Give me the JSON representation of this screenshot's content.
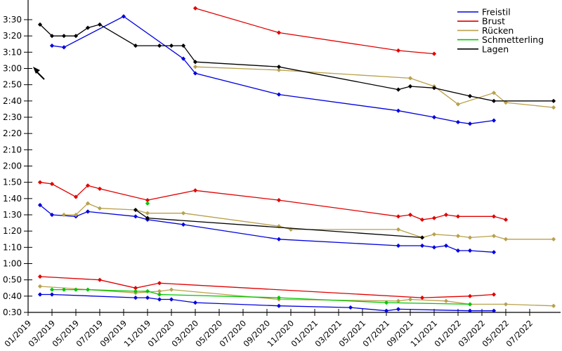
{
  "chart_data": {
    "type": "line",
    "title": "",
    "xlabel": "",
    "ylabel": "",
    "grid": false,
    "x_axis": {
      "first_month": "01/2019",
      "last_month": "09/2022",
      "tick_labels": [
        "01/2019",
        "03/2019",
        "05/2019",
        "07/2019",
        "09/2019",
        "11/2019",
        "01/2020",
        "03/2020",
        "05/2020",
        "07/2020",
        "09/2020",
        "11/2020",
        "01/2021",
        "03/2021",
        "05/2021",
        "07/2021",
        "09/2021",
        "11/2021",
        "01/2022",
        "03/2022",
        "05/2022",
        "07/2022"
      ]
    },
    "y_axis": {
      "format": "m:ss",
      "min": "0:30",
      "max": "3:30",
      "tick_labels": [
        "0:30",
        "0:40",
        "0:50",
        "1:00",
        "1:10",
        "1:20",
        "1:30",
        "1:40",
        "1:50",
        "2:00",
        "2:10",
        "2:20",
        "2:30",
        "2:40",
        "2:50",
        "3:00",
        "3:10",
        "3:20",
        "3:30"
      ]
    },
    "legend": {
      "position": "upper-right",
      "entries": [
        {
          "label": "Freistil",
          "color": "#0000e0"
        },
        {
          "label": "Brust",
          "color": "#e00000"
        },
        {
          "label": "Rücken",
          "color": "#b8a14c"
        },
        {
          "label": "Schmetterling",
          "color": "#00c800"
        },
        {
          "label": "Lagen",
          "color": "#000000"
        }
      ]
    },
    "series": [
      {
        "label": "Freistil",
        "cluster": "top",
        "color": "#0000e0",
        "points": [
          [
            "03/2019",
            "3:14"
          ],
          [
            "04/2019",
            "3:13"
          ],
          [
            "09/2019",
            "3:32"
          ],
          [
            "02/2020",
            "3:06"
          ],
          [
            "03/2020",
            "2:57"
          ],
          [
            "10/2020",
            "2:44"
          ],
          [
            "08/2021",
            "2:34"
          ],
          [
            "11/2021",
            "2:30"
          ],
          [
            "01/2022",
            "2:27"
          ],
          [
            "02/2022",
            "2:26"
          ],
          [
            "04/2022",
            "2:28"
          ]
        ]
      },
      {
        "label": "Freistil",
        "cluster": "middle",
        "color": "#0000e0",
        "points": [
          [
            "02/2019",
            "1:36"
          ],
          [
            "03/2019",
            "1:30"
          ],
          [
            "05/2019",
            "1:29"
          ],
          [
            "06/2019",
            "1:32"
          ],
          [
            "10/2019",
            "1:29"
          ],
          [
            "11/2019",
            "1:27"
          ],
          [
            "02/2020",
            "1:24"
          ],
          [
            "10/2020",
            "1:15"
          ],
          [
            "08/2021",
            "1:11"
          ],
          [
            "10/2021",
            "1:11"
          ],
          [
            "11/2021",
            "1:10"
          ],
          [
            "12/2021",
            "1:11"
          ],
          [
            "01/2022",
            "1:08"
          ],
          [
            "02/2022",
            "1:08"
          ],
          [
            "04/2022",
            "1:07"
          ]
        ]
      },
      {
        "label": "Freistil",
        "cluster": "bottom",
        "color": "#0000e0",
        "points": [
          [
            "02/2019",
            "0:41"
          ],
          [
            "03/2019",
            "0:41"
          ],
          [
            "10/2019",
            "0:39"
          ],
          [
            "11/2019",
            "0:39"
          ],
          [
            "12/2019",
            "0:38"
          ],
          [
            "01/2020",
            "0:38"
          ],
          [
            "03/2020",
            "0:36"
          ],
          [
            "10/2020",
            "0:34"
          ],
          [
            "04/2021",
            "0:33"
          ],
          [
            "07/2021",
            "0:31"
          ],
          [
            "08/2021",
            "0:32"
          ],
          [
            "02/2022",
            "0:31"
          ],
          [
            "04/2022",
            "0:31"
          ]
        ]
      },
      {
        "label": "Brust",
        "cluster": "top",
        "color": "#e00000",
        "points": [
          [
            "03/2020",
            "3:37"
          ],
          [
            "10/2020",
            "3:22"
          ],
          [
            "08/2021",
            "3:11"
          ],
          [
            "11/2021",
            "3:09"
          ]
        ]
      },
      {
        "label": "Brust",
        "cluster": "middle",
        "color": "#e00000",
        "points": [
          [
            "02/2019",
            "1:50"
          ],
          [
            "03/2019",
            "1:49"
          ],
          [
            "05/2019",
            "1:41"
          ],
          [
            "06/2019",
            "1:48"
          ],
          [
            "07/2019",
            "1:46"
          ],
          [
            "11/2019",
            "1:39"
          ],
          [
            "03/2020",
            "1:45"
          ],
          [
            "10/2020",
            "1:39"
          ],
          [
            "08/2021",
            "1:29"
          ],
          [
            "09/2021",
            "1:30"
          ],
          [
            "10/2021",
            "1:27"
          ],
          [
            "11/2021",
            "1:28"
          ],
          [
            "12/2021",
            "1:30"
          ],
          [
            "01/2022",
            "1:29"
          ],
          [
            "04/2022",
            "1:29"
          ],
          [
            "05/2022",
            "1:27"
          ]
        ]
      },
      {
        "label": "Brust",
        "cluster": "bottom",
        "color": "#e00000",
        "points": [
          [
            "02/2019",
            "0:52"
          ],
          [
            "07/2019",
            "0:50"
          ],
          [
            "10/2019",
            "0:45"
          ],
          [
            "12/2019",
            "0:48"
          ],
          [
            "10/2021",
            "0:39"
          ],
          [
            "02/2022",
            "0:40"
          ],
          [
            "04/2022",
            "0:41"
          ]
        ]
      },
      {
        "label": "Rücken",
        "cluster": "top",
        "color": "#b8a14c",
        "points": [
          [
            "03/2020",
            "3:01"
          ],
          [
            "10/2020",
            "2:59"
          ],
          [
            "09/2021",
            "2:54"
          ],
          [
            "11/2021",
            "2:49"
          ],
          [
            "01/2022",
            "2:38"
          ],
          [
            "04/2022",
            "2:45"
          ],
          [
            "05/2022",
            "2:39"
          ],
          [
            "09/2022",
            "2:36"
          ]
        ]
      },
      {
        "label": "Rücken",
        "cluster": "middle",
        "color": "#b8a14c",
        "points": [
          [
            "04/2019",
            "1:30"
          ],
          [
            "05/2019",
            "1:30"
          ],
          [
            "06/2019",
            "1:37"
          ],
          [
            "07/2019",
            "1:34"
          ],
          [
            "10/2019",
            "1:33"
          ],
          [
            "11/2019",
            "1:31"
          ],
          [
            "02/2020",
            "1:31"
          ],
          [
            "10/2020",
            "1:23"
          ],
          [
            "11/2020",
            "1:21"
          ],
          [
            "08/2021",
            "1:21"
          ],
          [
            "10/2021",
            "1:16"
          ],
          [
            "11/2021",
            "1:18"
          ],
          [
            "01/2022",
            "1:17"
          ],
          [
            "02/2022",
            "1:16"
          ],
          [
            "04/2022",
            "1:17"
          ],
          [
            "05/2022",
            "1:15"
          ],
          [
            "09/2022",
            "1:15"
          ]
        ]
      },
      {
        "label": "Rücken",
        "cluster": "bottom",
        "color": "#b8a14c",
        "points": [
          [
            "02/2019",
            "0:46"
          ],
          [
            "10/2019",
            "0:42"
          ],
          [
            "12/2019",
            "0:43"
          ],
          [
            "01/2020",
            "0:44"
          ],
          [
            "10/2020",
            "0:38"
          ],
          [
            "08/2021",
            "0:37"
          ],
          [
            "09/2021",
            "0:38"
          ],
          [
            "12/2021",
            "0:37"
          ],
          [
            "02/2022",
            "0:35"
          ],
          [
            "05/2022",
            "0:35"
          ],
          [
            "09/2022",
            "0:34"
          ]
        ]
      },
      {
        "label": "Schmetterling",
        "cluster": "middle",
        "color": "#00c800",
        "points": [
          [
            "11/2019",
            "1:37"
          ]
        ]
      },
      {
        "label": "Schmetterling",
        "cluster": "bottom",
        "color": "#00c800",
        "points": [
          [
            "03/2019",
            "0:44"
          ],
          [
            "04/2019",
            "0:44"
          ],
          [
            "05/2019",
            "0:44"
          ],
          [
            "06/2019",
            "0:44"
          ],
          [
            "10/2019",
            "0:43"
          ],
          [
            "11/2019",
            "0:43"
          ],
          [
            "12/2019",
            "0:41"
          ],
          [
            "10/2020",
            "0:39"
          ],
          [
            "07/2021",
            "0:36"
          ],
          [
            "02/2022",
            "0:35"
          ]
        ]
      },
      {
        "label": "Lagen",
        "cluster": "middle",
        "color": "#000000",
        "points": [
          [
            "10/2019",
            "1:33"
          ],
          [
            "11/2019",
            "1:28"
          ],
          [
            "10/2021",
            "1:16"
          ]
        ]
      },
      {
        "label": "Lagen",
        "cluster": "top",
        "color": "#000000",
        "points": [
          [
            "02/2019",
            "3:27"
          ],
          [
            "03/2019",
            "3:20"
          ],
          [
            "04/2019",
            "3:20"
          ],
          [
            "05/2019",
            "3:20"
          ],
          [
            "06/2019",
            "3:25"
          ],
          [
            "07/2019",
            "3:27"
          ],
          [
            "10/2019",
            "3:14"
          ],
          [
            "12/2019",
            "3:14"
          ],
          [
            "01/2020",
            "3:14"
          ],
          [
            "02/2020",
            "3:14"
          ],
          [
            "03/2020",
            "3:04"
          ],
          [
            "10/2020",
            "3:01"
          ],
          [
            "08/2021",
            "2:47"
          ],
          [
            "09/2021",
            "2:49"
          ],
          [
            "11/2021",
            "2:48"
          ],
          [
            "02/2022",
            "2:43"
          ],
          [
            "04/2022",
            "2:40"
          ],
          [
            "09/2022",
            "2:40"
          ]
        ]
      }
    ]
  },
  "mouse_cursor": {
    "present": true
  }
}
